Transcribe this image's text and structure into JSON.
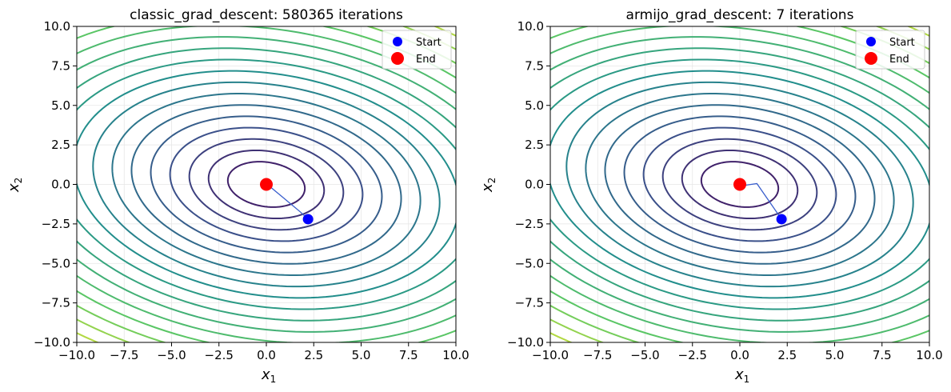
{
  "colors": {
    "start": "#0000ff",
    "end": "#ff0000",
    "path": "#3a5fcd",
    "contour_colormap": "viridis"
  },
  "chart_data": [
    {
      "type": "contour",
      "title": "classic_grad_descent: 580365 iterations",
      "xlabel": "x",
      "xlabel_sub": "1",
      "ylabel": "x",
      "ylabel_sub": "2",
      "xlim": [
        -10,
        10
      ],
      "ylim": [
        -10,
        10
      ],
      "xticks": [
        "−10.0",
        "−7.5",
        "−5.0",
        "−2.5",
        "0.0",
        "2.5",
        "5.0",
        "7.5",
        "10.0"
      ],
      "yticks": [
        "−10.0",
        "−7.5",
        "−5.0",
        "−2.5",
        "0.0",
        "2.5",
        "5.0",
        "7.5",
        "10.0"
      ],
      "grid": true,
      "legend": {
        "placement": "top-right",
        "entries": [
          "Start",
          "End"
        ]
      },
      "function": {
        "a": 1,
        "b": 0.5,
        "c": 2
      },
      "levels": [
        4,
        9,
        16,
        25,
        36,
        49,
        64,
        81,
        100,
        121,
        144,
        169,
        196,
        225,
        256,
        289,
        324,
        361,
        400
      ],
      "start": [
        2.2,
        -2.2
      ],
      "end": [
        0.0,
        0.0
      ],
      "path": [
        [
          2.2,
          -2.2
        ],
        [
          1.8,
          -1.75
        ],
        [
          1.35,
          -1.3
        ],
        [
          0.9,
          -0.85
        ],
        [
          0.5,
          -0.45
        ],
        [
          0.2,
          -0.15
        ],
        [
          0.0,
          0.0
        ]
      ]
    },
    {
      "type": "contour",
      "title": "armijo_grad_descent: 7 iterations",
      "xlabel": "x",
      "xlabel_sub": "1",
      "ylabel": "x",
      "ylabel_sub": "2",
      "xlim": [
        -10,
        10
      ],
      "ylim": [
        -10,
        10
      ],
      "xticks": [
        "−10.0",
        "−7.5",
        "−5.0",
        "−2.5",
        "0.0",
        "2.5",
        "5.0",
        "7.5",
        "10.0"
      ],
      "yticks": [
        "−10.0",
        "−7.5",
        "−5.0",
        "−2.5",
        "0.0",
        "2.5",
        "5.0",
        "7.5",
        "10.0"
      ],
      "grid": true,
      "legend": {
        "placement": "top-right",
        "entries": [
          "Start",
          "End"
        ]
      },
      "function": {
        "a": 1,
        "b": 0.5,
        "c": 2
      },
      "levels": [
        4,
        9,
        16,
        25,
        36,
        49,
        64,
        81,
        100,
        121,
        144,
        169,
        196,
        225,
        256,
        289,
        324,
        361,
        400
      ],
      "start": [
        2.2,
        -2.2
      ],
      "end": [
        0.0,
        0.0
      ],
      "path": [
        [
          2.2,
          -2.2
        ],
        [
          0.9,
          0.05
        ],
        [
          0.3,
          -0.05
        ],
        [
          0.05,
          0.0
        ],
        [
          0.0,
          0.0
        ]
      ]
    }
  ]
}
